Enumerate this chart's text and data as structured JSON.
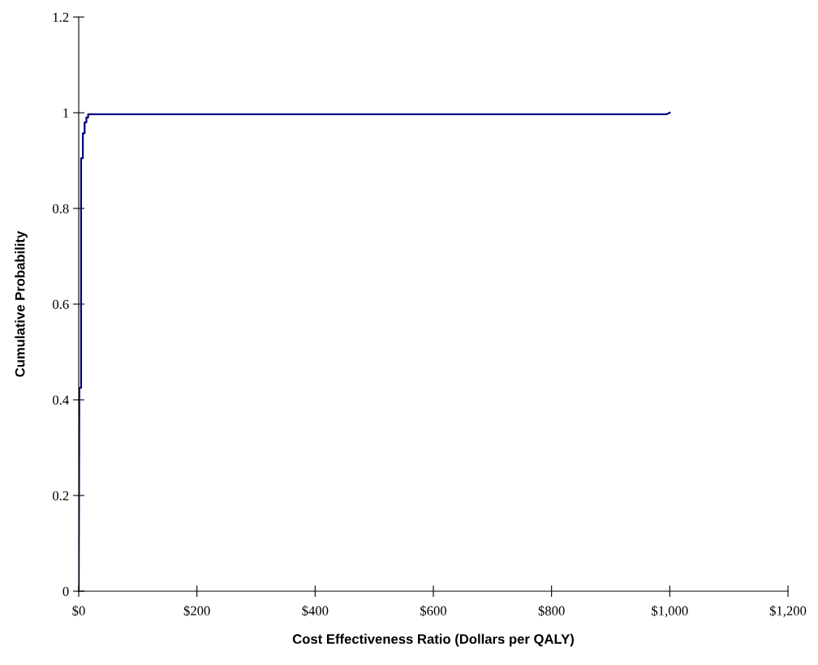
{
  "chart_data": {
    "type": "line",
    "xlabel": "Cost Effectiveness Ratio (Dollars per QALY)",
    "ylabel": "Cumulative Probability",
    "series": [
      {
        "color": "#000080",
        "x": [
          0,
          1,
          4,
          4,
          7,
          7,
          10,
          10,
          13,
          13,
          16,
          16,
          995,
          1000
        ],
        "values": [
          0,
          0.425,
          0.425,
          0.905,
          0.905,
          0.957,
          0.957,
          0.98,
          0.98,
          0.99,
          0.99,
          0.997,
          0.997,
          1.0
        ]
      }
    ],
    "xlim": [
      0,
      1200
    ],
    "ylim": [
      0,
      1.2
    ],
    "xticks": [
      {
        "value": 0,
        "label": "$0"
      },
      {
        "value": 200,
        "label": "$200"
      },
      {
        "value": 400,
        "label": "$400"
      },
      {
        "value": 600,
        "label": "$600"
      },
      {
        "value": 800,
        "label": "$800"
      },
      {
        "value": 1000,
        "label": "$1,000"
      },
      {
        "value": 1200,
        "label": "$1,200"
      }
    ],
    "yticks": [
      0,
      0.2,
      0.4,
      0.6,
      0.8,
      1,
      1.2
    ],
    "grid": false,
    "legend": false,
    "marker": "none",
    "line_style": "solid"
  }
}
